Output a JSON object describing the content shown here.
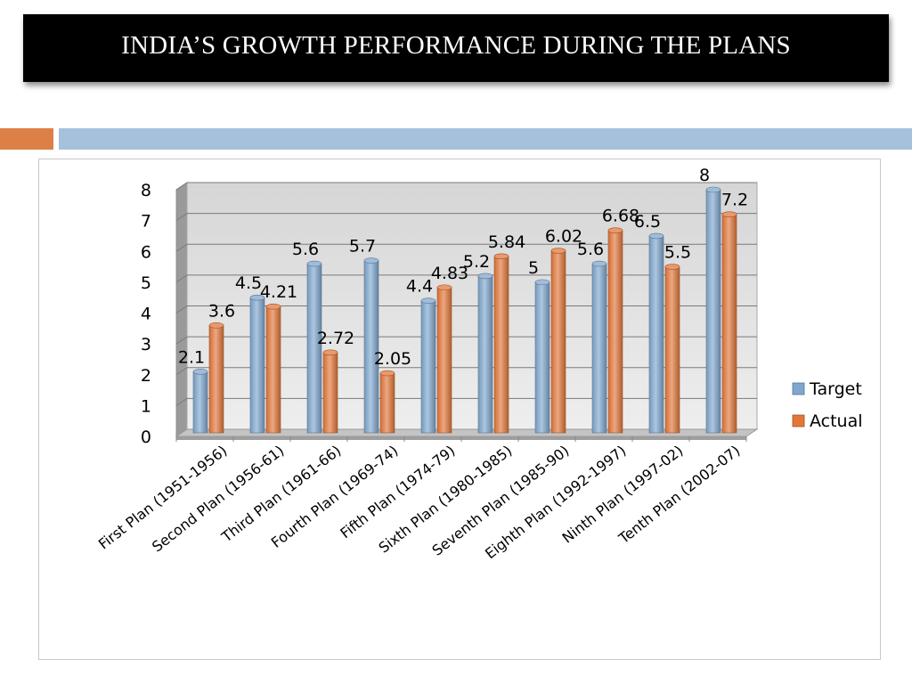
{
  "title": "INDIA’S  GROWTH  PERFORMANCE  DURING THE PLANS",
  "colors": {
    "target": "#7FA7CF",
    "actual": "#E3773A",
    "accent_orange": "#DD8047",
    "accent_blue": "#A5C1DB"
  },
  "chart_data": {
    "type": "bar",
    "style": "3d-clustered",
    "title": "",
    "xlabel": "",
    "ylabel": "",
    "ylim": [
      0,
      8
    ],
    "yticks": [
      0,
      1,
      2,
      3,
      4,
      5,
      6,
      7,
      8
    ],
    "grid": true,
    "legend_position": "right",
    "categories": [
      "First Plan (1951-1956)",
      "Second Plan (1956-61)",
      "Third Plan (1961-66)",
      "Fourth Plan (1969-74)",
      "Fifth Plan (1974-79)",
      "Sixth Plan (1980-1985)",
      "Seventh Plan (1985-90)",
      "Eighth Plan (1992-1997)",
      "Ninth Plan (1997-02)",
      "Tenth Plan (2002-07)"
    ],
    "series": [
      {
        "name": "Target",
        "values": [
          2.1,
          4.5,
          5.6,
          5.7,
          4.4,
          5.2,
          5,
          5.6,
          6.5,
          8
        ]
      },
      {
        "name": "Actual",
        "values": [
          3.6,
          4.21,
          2.72,
          2.05,
          4.83,
          5.84,
          6.02,
          6.68,
          5.5,
          7.2
        ]
      }
    ]
  }
}
